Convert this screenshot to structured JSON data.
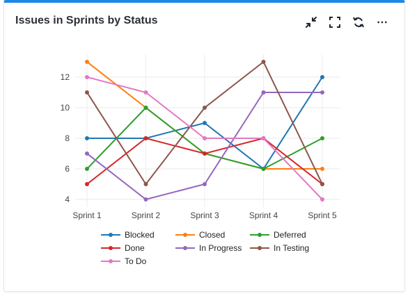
{
  "widget": {
    "title": "Issues in Sprints by Status",
    "toolbar": {
      "collapse_icon": "collapse-arrows-icon",
      "fullscreen_icon": "fullscreen-icon",
      "refresh_icon": "refresh-icon",
      "more_icon": "more-options-icon",
      "more_label": "⋯"
    }
  },
  "chart_data": {
    "type": "line",
    "title": "",
    "xlabel": "",
    "ylabel": "",
    "categories": [
      "Sprint 1",
      "Sprint 2",
      "Sprint 3",
      "Sprint 4",
      "Sprint 5"
    ],
    "ylim": [
      3.5,
      13.5
    ],
    "yticks": [
      4,
      6,
      8,
      10,
      12
    ],
    "grid": true,
    "legend_position": "bottom",
    "series": [
      {
        "name": "Blocked",
        "color": "#1f77b4",
        "values": [
          8,
          8,
          9,
          6,
          12
        ]
      },
      {
        "name": "Closed",
        "color": "#ff7f0e",
        "values": [
          13,
          10,
          7,
          6,
          6
        ]
      },
      {
        "name": "Deferred",
        "color": "#2ca02c",
        "values": [
          6,
          10,
          7,
          6,
          8
        ]
      },
      {
        "name": "Done",
        "color": "#d62728",
        "values": [
          5,
          8,
          7,
          8,
          5
        ]
      },
      {
        "name": "In Progress",
        "color": "#9467bd",
        "values": [
          7,
          4,
          5,
          11,
          11
        ]
      },
      {
        "name": "In Testing",
        "color": "#8c564b",
        "values": [
          11,
          5,
          10,
          13,
          5
        ]
      },
      {
        "name": "To Do",
        "color": "#e377c2",
        "values": [
          12,
          11,
          8,
          8,
          4
        ]
      }
    ]
  }
}
